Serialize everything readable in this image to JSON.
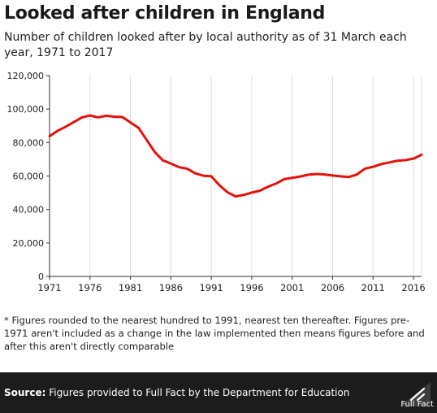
{
  "title": "Looked after children in England",
  "subtitle": "Number of children looked after by local authority as of 31 March each year, 1971 to 2017",
  "footnote": "* Figures rounded to the nearest hundred to 1991, nearest ten thereafter. Figures pre-1971 aren't included as a change in the law implemented then means figures before and after this aren't directly comparable",
  "source": {
    "label": "Source:",
    "text": "Figures provided to Full Fact by the Department for Education"
  },
  "logo": {
    "text": "Full Fact",
    "icon": "full-fact-logo-icon"
  },
  "colors": {
    "line": "#e3120b",
    "grid": "#dddddd",
    "axis": "#333333",
    "footer": "#1c1c1c"
  },
  "chart_data": {
    "type": "line",
    "title": "Looked after children in England",
    "xlabel": "",
    "ylabel": "",
    "xlim": [
      1971,
      2017
    ],
    "ylim": [
      0,
      120000
    ],
    "grid": "vertical",
    "x_ticks": [
      1971,
      1976,
      1981,
      1986,
      1991,
      1996,
      2001,
      2006,
      2011,
      2016
    ],
    "y_ticks": [
      0,
      20000,
      40000,
      60000,
      80000,
      100000,
      120000
    ],
    "y_tick_labels": [
      "0",
      "20,000",
      "40,000",
      "60,000",
      "80,000",
      "100,000",
      "120,000"
    ],
    "series": [
      {
        "x": [
          1971,
          1972,
          1973,
          1974,
          1975,
          1976,
          1977,
          1978,
          1979,
          1980,
          1981,
          1982,
          1983,
          1984,
          1985,
          1986,
          1987,
          1988,
          1989,
          1990,
          1991,
          1992,
          1993,
          1994,
          1995,
          1996,
          1997,
          1998,
          1999,
          2000,
          2001,
          2002,
          2003,
          2004,
          2005,
          2006,
          2007,
          2008,
          2009,
          2010,
          2011,
          2012,
          2013,
          2014,
          2015,
          2016,
          2017
        ],
        "values": [
          83800,
          87000,
          89500,
          92200,
          95000,
          96200,
          95000,
          96000,
          95400,
          95300,
          92000,
          88800,
          81600,
          74400,
          69400,
          67400,
          65300,
          64400,
          61600,
          60200,
          59800,
          54500,
          50300,
          47800,
          48700,
          50100,
          51200,
          53600,
          55500,
          58100,
          58900,
          59700,
          60800,
          61200,
          60900,
          60300,
          59800,
          59400,
          60900,
          64400,
          65500,
          67100,
          68100,
          69100,
          69500,
          70400,
          72700
        ]
      }
    ]
  }
}
